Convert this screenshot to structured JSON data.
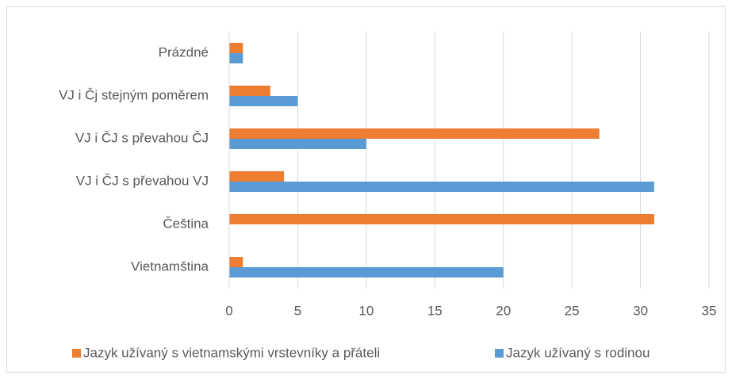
{
  "chart_data": {
    "type": "bar",
    "orientation": "horizontal",
    "categories": [
      "Prázdné",
      "VJ i Čj stejným poměrem",
      "VJ i ČJ s převahou ČJ",
      "VJ i ČJ s převahou VJ",
      "Čeština",
      "Vietnamština"
    ],
    "series": [
      {
        "name": "Jazyk užívaný s vietnamskými vrstevníky a přáteli",
        "color": "#ed7d31",
        "values": [
          1,
          3,
          27,
          4,
          31,
          1
        ]
      },
      {
        "name": "Jazyk užívaný s rodinou",
        "color": "#5b9bd5",
        "values": [
          1,
          5,
          10,
          31,
          0,
          20
        ]
      }
    ],
    "xlim": [
      0,
      35
    ],
    "xticks": [
      0,
      5,
      10,
      15,
      20,
      25,
      30,
      35
    ],
    "grid": true,
    "legend": "bottom"
  }
}
